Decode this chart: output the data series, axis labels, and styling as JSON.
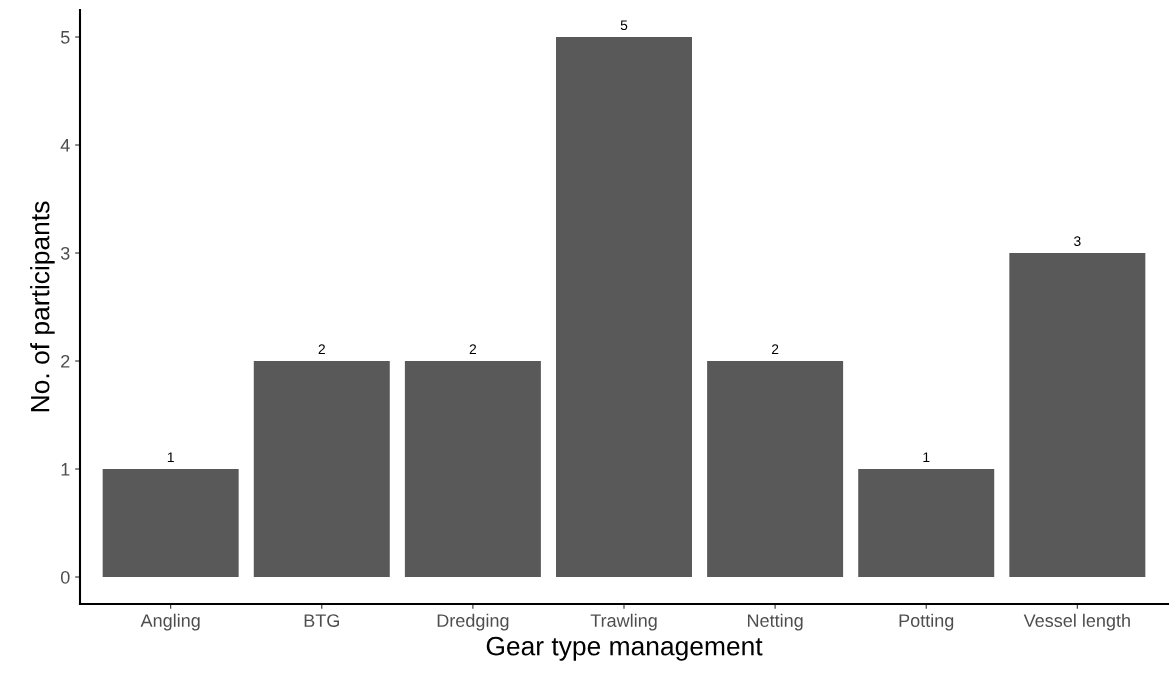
{
  "chart_data": {
    "type": "bar",
    "xlabel": "Gear type management",
    "ylabel": "No. of participants",
    "categories": [
      "Angling",
      "BTG",
      "Dredging",
      "Trawling",
      "Netting",
      "Potting",
      "Vessel length"
    ],
    "values": [
      1,
      2,
      2,
      5,
      2,
      1,
      3
    ],
    "color": "#595959",
    "ylim": [
      -0.25,
      5.25
    ],
    "yticks": [
      0,
      1,
      2,
      3,
      4,
      5
    ],
    "grid": false,
    "data_labels": true
  }
}
